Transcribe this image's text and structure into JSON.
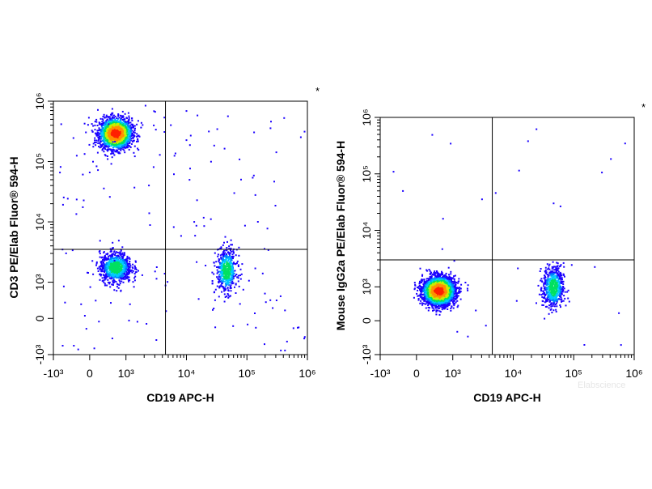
{
  "chart_data": [
    {
      "type": "scatter",
      "xlabel": "CD19 APC-H",
      "ylabel": "CD3 PE/Elab Fluor® 594-H",
      "corner_mark": "*",
      "x_scale": "biexponential",
      "y_scale": "biexponential",
      "xlim": [
        -1000,
        1000000
      ],
      "ylim": [
        -1000,
        1000000
      ],
      "x_tick_labels": [
        "-10³",
        "0",
        "10³",
        "10⁴",
        "10⁵",
        "10⁶"
      ],
      "y_tick_labels": [
        "-10³",
        "0",
        "10³",
        "10⁴",
        "10⁵",
        "10⁶"
      ],
      "gate": {
        "x": 4500,
        "y": 3500
      },
      "populations": [
        {
          "x": 700,
          "y": 300000,
          "share": 0.6
        },
        {
          "x": 700,
          "y": 1800,
          "share": 0.25
        },
        {
          "x": 45000,
          "y": 1600,
          "share": 0.15
        }
      ]
    },
    {
      "type": "scatter",
      "xlabel": "CD19 APC-H",
      "ylabel": "Mouse IgG2a PE/Elab Fluor® 594-H",
      "corner_mark": "*",
      "x_scale": "biexponential",
      "y_scale": "biexponential",
      "xlim": [
        -1000,
        1000000
      ],
      "ylim": [
        -1000,
        1000000
      ],
      "x_tick_labels": [
        "-10³",
        "0",
        "10³",
        "10⁴",
        "10⁵",
        "10⁶"
      ],
      "y_tick_labels": [
        "-10³",
        "0",
        "10³",
        "10⁴",
        "10⁵",
        "10⁶"
      ],
      "gate": {
        "x": 4500,
        "y": 3000
      },
      "populations": [
        {
          "x": 600,
          "y": 900,
          "share": 0.82
        },
        {
          "x": 45000,
          "y": 1000,
          "share": 0.18
        }
      ]
    }
  ],
  "watermark": "Elabscience"
}
